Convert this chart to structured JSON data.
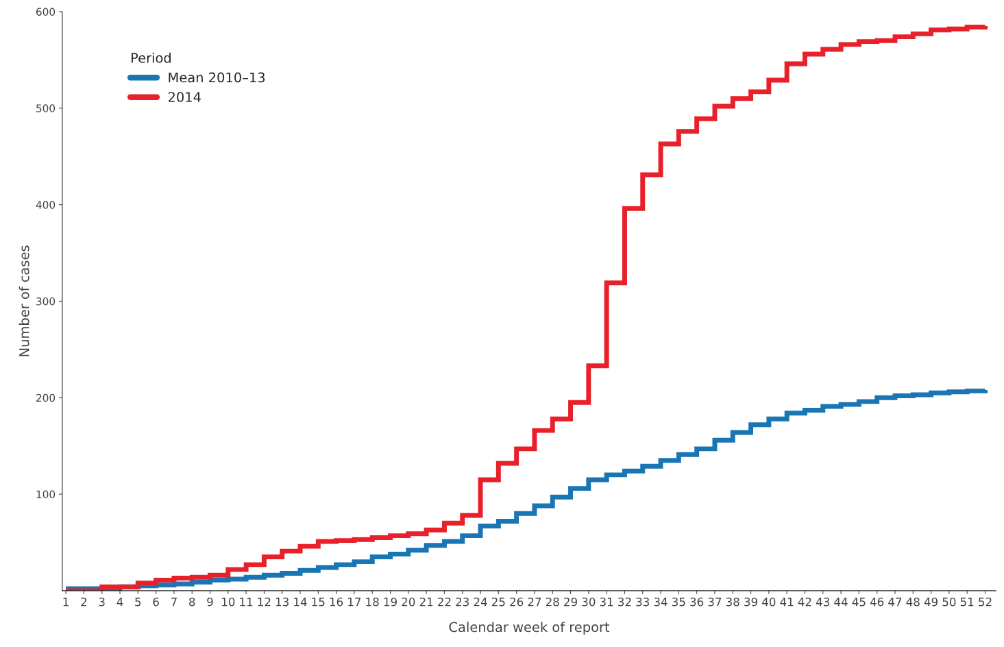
{
  "chart_data": {
    "type": "step",
    "xlabel": "Calendar week of report",
    "ylabel": "Number of cases",
    "legend_title": "Period",
    "legend": "top left",
    "grid": false,
    "x": [
      1,
      2,
      3,
      4,
      5,
      6,
      7,
      8,
      9,
      10,
      11,
      12,
      13,
      14,
      15,
      16,
      17,
      18,
      19,
      20,
      21,
      22,
      23,
      24,
      25,
      26,
      27,
      28,
      29,
      30,
      31,
      32,
      33,
      34,
      35,
      36,
      37,
      38,
      39,
      40,
      41,
      42,
      43,
      44,
      45,
      46,
      47,
      48,
      49,
      50,
      51,
      52
    ],
    "xlim": [
      0.8,
      52.6
    ],
    "xticks": [
      1,
      2,
      3,
      4,
      5,
      6,
      7,
      8,
      9,
      10,
      11,
      12,
      13,
      14,
      15,
      16,
      17,
      18,
      19,
      20,
      21,
      22,
      23,
      24,
      25,
      26,
      27,
      28,
      29,
      30,
      31,
      32,
      33,
      34,
      35,
      36,
      37,
      38,
      39,
      40,
      41,
      42,
      43,
      44,
      45,
      46,
      47,
      48,
      49,
      50,
      51,
      52
    ],
    "ylim": [
      0,
      600
    ],
    "yticks": [
      100,
      200,
      300,
      400,
      500,
      600
    ],
    "series": [
      {
        "name": "Mean 2010–13",
        "color": "#1a75b4",
        "values": [
          2,
          2,
          2,
          4,
          5,
          6,
          7,
          9,
          11,
          12,
          14,
          16,
          18,
          21,
          24,
          27,
          30,
          35,
          38,
          42,
          47,
          51,
          57,
          67,
          72,
          80,
          88,
          97,
          106,
          115,
          120,
          124,
          129,
          135,
          141,
          147,
          156,
          164,
          172,
          178,
          184,
          187,
          191,
          193,
          196,
          200,
          202,
          203,
          205,
          206,
          207,
          208
        ]
      },
      {
        "name": "2014",
        "color": "#e8202a",
        "values": [
          0,
          0,
          4,
          4,
          8,
          11,
          13,
          14,
          16,
          22,
          27,
          35,
          41,
          46,
          51,
          52,
          53,
          55,
          57,
          59,
          63,
          70,
          78,
          115,
          132,
          147,
          166,
          178,
          195,
          233,
          319,
          396,
          431,
          463,
          476,
          489,
          502,
          510,
          517,
          529,
          546,
          556,
          561,
          566,
          569,
          570,
          574,
          577,
          581,
          582,
          584,
          585
        ]
      }
    ]
  }
}
